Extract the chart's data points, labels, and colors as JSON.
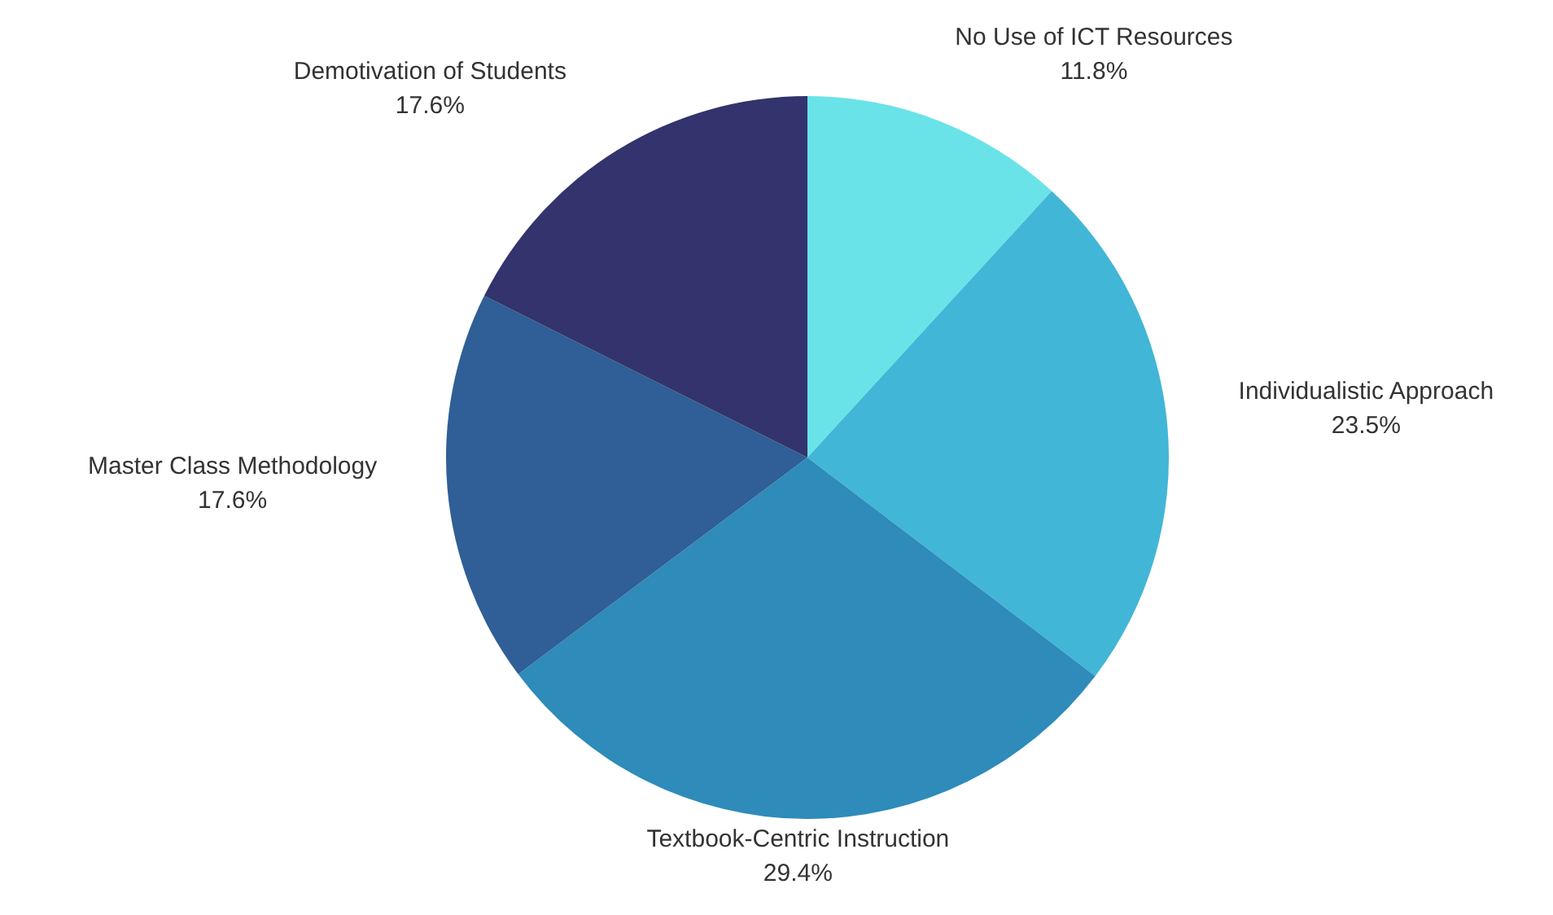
{
  "chart_data": {
    "type": "pie",
    "categories": [
      "No Use of ICT Resources",
      "Individualistic Approach",
      "Textbook-Centric Instruction",
      "Master Class Methodology",
      "Demotivation of Students"
    ],
    "values": [
      11.8,
      23.5,
      29.4,
      17.6,
      17.6
    ],
    "value_labels": [
      "11.8%",
      "23.5%",
      "29.4%",
      "17.6%",
      "17.6%"
    ],
    "colors": [
      "#6ae3e8",
      "#42b6d6",
      "#2e8bba",
      "#2f5f96",
      "#33336d"
    ]
  }
}
